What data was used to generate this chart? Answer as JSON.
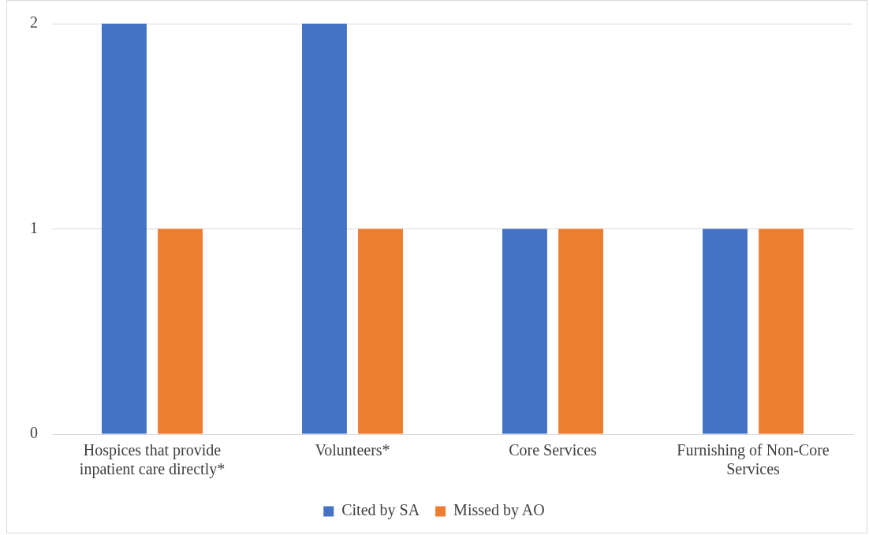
{
  "chart_data": {
    "type": "bar",
    "categories": [
      "Hospices that provide inpatient care directly*",
      "Volunteers*",
      "Core Services",
      "Furnishing of Non-Core Services"
    ],
    "series": [
      {
        "name": "Cited by SA",
        "color": "#4472c4",
        "values": [
          2,
          2,
          1,
          1
        ]
      },
      {
        "name": "Missed by AO",
        "color": "#ed7d31",
        "values": [
          1,
          1,
          1,
          1
        ]
      }
    ],
    "ylim": [
      0,
      2
    ],
    "yticks": [
      0,
      1,
      2
    ],
    "grid": "y",
    "legend": "bottom"
  }
}
